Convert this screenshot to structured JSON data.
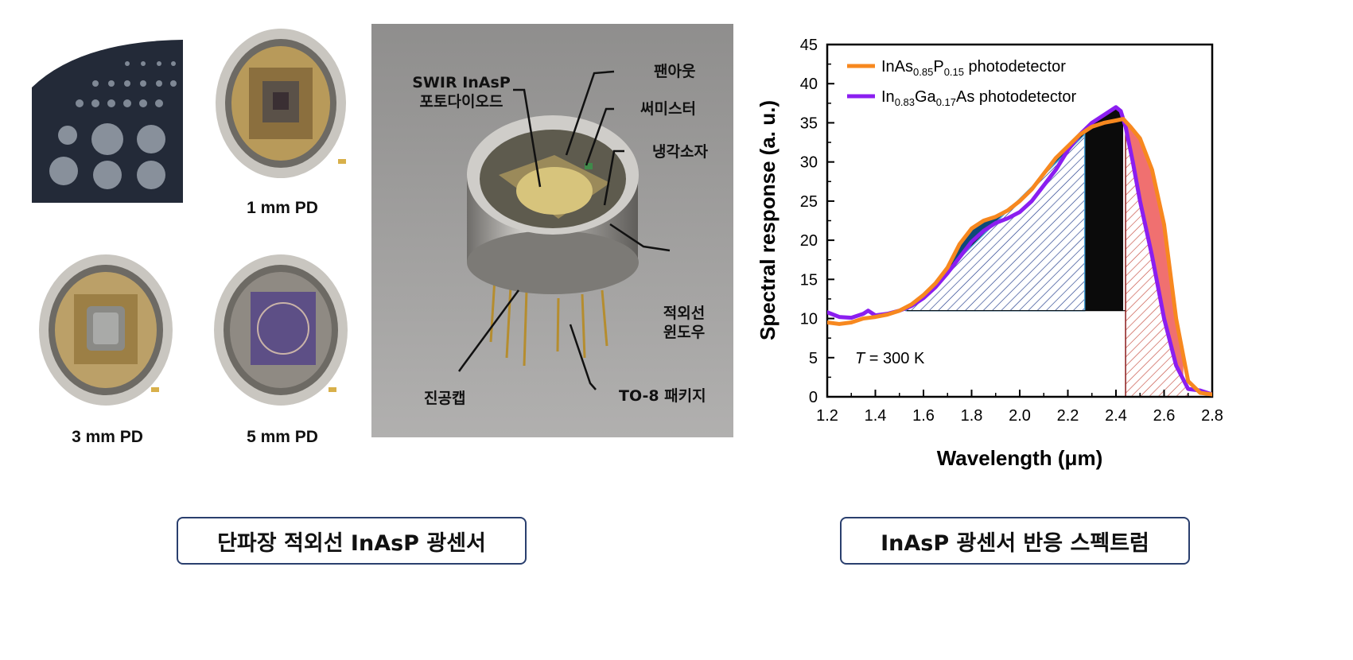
{
  "photos": {
    "pd_1mm_label": "1 mm PD",
    "pd_3mm_label": "3 mm PD",
    "pd_5mm_label": "5 mm PD"
  },
  "package_photo": {
    "callouts": {
      "photodiode_line1": "SWIR InAsP",
      "photodiode_line2": "포토다이오드",
      "fanout": "팬아웃",
      "thermistor": "써미스터",
      "cooler": "냉각소자",
      "ir_window_line1": "적외선",
      "ir_window_line2": "윈도우",
      "vacuum_cap": "진공캡",
      "to8_package": "TO-8 패키지"
    }
  },
  "buttons": {
    "left_panel": "단파장 적외선 InAsP 광센서",
    "right_panel": "InAsP 광센서 반응 스펙트럼"
  },
  "colors": {
    "inasp": "#f7881f",
    "ingaas": "#8b1ef0",
    "button_border": "#2a3f6e",
    "fill_dark": "#0d4a7a",
    "fill_red": "#f07070"
  },
  "chart_data": {
    "type": "line",
    "xlabel": "Wavelength (μm)",
    "ylabel": "Spectral response (a. u.)",
    "xlim": [
      1.2,
      2.8
    ],
    "ylim": [
      0,
      45
    ],
    "xticks": [
      "1.2",
      "1.4",
      "1.6",
      "1.8",
      "2.0",
      "2.2",
      "2.4",
      "2.6",
      "2.8"
    ],
    "yticks": [
      "0",
      "5",
      "10",
      "15",
      "20",
      "25",
      "30",
      "35",
      "40",
      "45"
    ],
    "annotation": "T = 300 K",
    "legend_position": "top-left",
    "series": [
      {
        "name_main": "InAs",
        "name_sub1": "0.85",
        "name_mid": "P",
        "name_sub2": "0.15",
        "name_tail": " photodetector",
        "color": "#f7881f",
        "x": [
          1.2,
          1.25,
          1.3,
          1.35,
          1.4,
          1.45,
          1.5,
          1.55,
          1.6,
          1.65,
          1.7,
          1.75,
          1.8,
          1.85,
          1.9,
          1.95,
          2.0,
          2.05,
          2.1,
          2.15,
          2.2,
          2.25,
          2.3,
          2.35,
          2.4,
          2.43,
          2.46,
          2.5,
          2.55,
          2.6,
          2.65,
          2.7,
          2.75,
          2.8
        ],
        "y": [
          9.5,
          9.3,
          9.5,
          10.0,
          10.2,
          10.5,
          11.0,
          11.8,
          13.0,
          14.5,
          16.5,
          19.5,
          21.5,
          22.5,
          23.0,
          23.8,
          25.0,
          26.5,
          28.5,
          30.5,
          32.0,
          33.5,
          34.5,
          35.0,
          35.3,
          35.5,
          34.5,
          33.0,
          29.0,
          22.0,
          10.0,
          2.0,
          0.5,
          0.3
        ]
      },
      {
        "name_main": "In",
        "name_sub1": "0.83",
        "name_mid": "Ga",
        "name_sub2": "0.17",
        "name_tail": "As photodetector",
        "color": "#8b1ef0",
        "x": [
          1.2,
          1.25,
          1.3,
          1.35,
          1.37,
          1.4,
          1.45,
          1.5,
          1.55,
          1.6,
          1.65,
          1.7,
          1.75,
          1.8,
          1.85,
          1.9,
          1.95,
          2.0,
          2.05,
          2.1,
          2.15,
          2.2,
          2.25,
          2.3,
          2.35,
          2.4,
          2.42,
          2.44,
          2.47,
          2.5,
          2.55,
          2.6,
          2.65,
          2.7,
          2.75,
          2.8
        ],
        "y": [
          10.8,
          10.2,
          10.1,
          10.6,
          11.0,
          10.4,
          10.6,
          11.0,
          11.6,
          12.6,
          14.0,
          15.8,
          17.8,
          19.8,
          21.2,
          22.2,
          22.8,
          23.6,
          25.0,
          27.0,
          29.0,
          31.5,
          33.5,
          35.0,
          36.0,
          37.0,
          36.5,
          34.5,
          30.0,
          25.0,
          18.0,
          10.0,
          4.0,
          1.0,
          0.8,
          0.3
        ]
      }
    ]
  }
}
